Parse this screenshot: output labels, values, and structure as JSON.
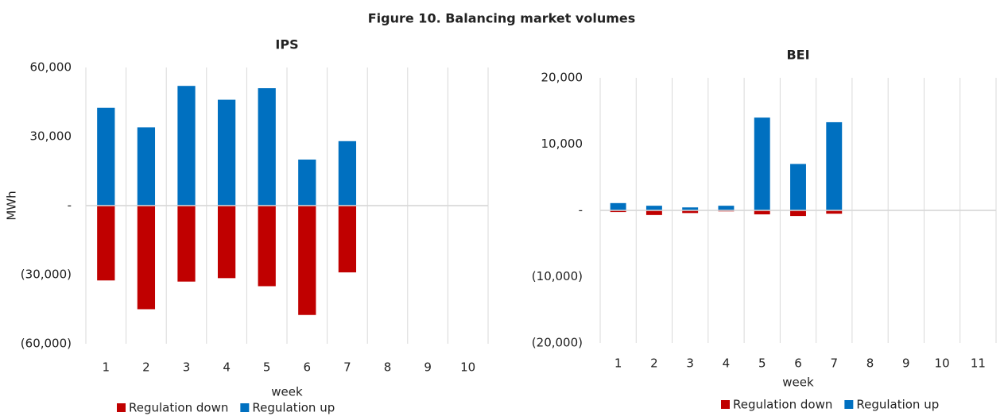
{
  "title": "Figure 10. Balancing market volumes",
  "chart_data": [
    {
      "type": "bar",
      "title": "IPS",
      "x_label": "week",
      "y_label": "MWh",
      "categories": [
        "1",
        "2",
        "3",
        "4",
        "5",
        "6",
        "7",
        "8",
        "9",
        "10"
      ],
      "series": [
        {
          "name": "Regulation down",
          "color": "#c00000",
          "values": [
            -32500,
            -45000,
            -33000,
            -31500,
            -35000,
            -47500,
            -29000,
            null,
            null,
            null
          ]
        },
        {
          "name": "Regulation up",
          "color": "#0070c0",
          "values": [
            42500,
            34000,
            52000,
            46000,
            51000,
            20000,
            28000,
            null,
            null,
            null
          ]
        }
      ],
      "ylim": [
        -60000,
        60000
      ],
      "yticks": [
        {
          "value": -60000,
          "label": "(60,000)"
        },
        {
          "value": -30000,
          "label": "(30,000)"
        },
        {
          "value": 0,
          "label": "-"
        },
        {
          "value": 30000,
          "label": "30,000"
        },
        {
          "value": 60000,
          "label": "60,000"
        }
      ],
      "grid": true,
      "legend": "bottom"
    },
    {
      "type": "bar",
      "title": "BEI",
      "x_label": "week",
      "categories": [
        "1",
        "2",
        "3",
        "4",
        "5",
        "6",
        "7",
        "8",
        "9",
        "10",
        "11"
      ],
      "series": [
        {
          "name": "Regulation down",
          "color": "#c00000",
          "values": [
            -250,
            -700,
            -400,
            -150,
            -600,
            -850,
            -500,
            null,
            null,
            null,
            null
          ]
        },
        {
          "name": "Regulation up",
          "color": "#0070c0",
          "values": [
            1100,
            700,
            450,
            700,
            14000,
            7000,
            13300,
            null,
            null,
            null,
            null
          ]
        }
      ],
      "ylim": [
        -20000,
        20000
      ],
      "yticks": [
        {
          "value": -20000,
          "label": "(20,000)"
        },
        {
          "value": -10000,
          "label": "(10,000)"
        },
        {
          "value": 0,
          "label": "-"
        },
        {
          "value": 10000,
          "label": "10,000"
        },
        {
          "value": 20000,
          "label": "20,000"
        }
      ],
      "grid": true,
      "legend": "bottom"
    }
  ]
}
